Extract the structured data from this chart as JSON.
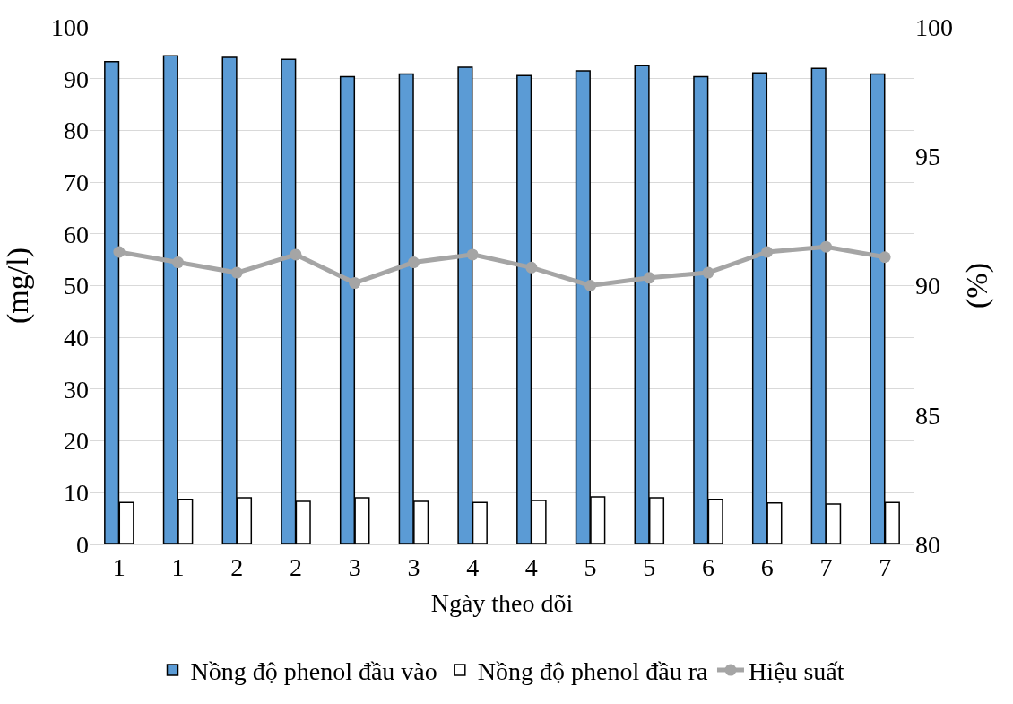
{
  "chart_data": {
    "type": "bar",
    "xlabel": "Ngày theo dõi",
    "ylabel": "(mg/l)",
    "y2label": "(%)",
    "categories": [
      "1",
      "1",
      "2",
      "2",
      "3",
      "3",
      "4",
      "4",
      "5",
      "5",
      "6",
      "6",
      "7",
      "7"
    ],
    "series": [
      {
        "name": "Nồng độ phenol đầu vào",
        "color": "#5b9bd5",
        "values": [
          93.3,
          94.4,
          94.1,
          93.7,
          90.4,
          90.9,
          92.2,
          90.6,
          91.5,
          92.5,
          90.4,
          91.1,
          92.0,
          90.9
        ]
      },
      {
        "name": "Nồng độ phenol đầu ra",
        "color": "#ffffff",
        "values": [
          8.1,
          8.7,
          9.0,
          8.3,
          9.0,
          8.3,
          8.1,
          8.5,
          9.2,
          9.0,
          8.7,
          8.0,
          7.8,
          8.1
        ]
      },
      {
        "name": "Hiệu suất",
        "type": "line",
        "axis": "y2",
        "color": "#a5a5a5",
        "marker": "circle",
        "values": [
          91.3,
          90.9,
          90.5,
          91.2,
          90.1,
          90.9,
          91.2,
          90.7,
          90.0,
          90.3,
          90.5,
          91.3,
          91.5,
          91.1
        ]
      }
    ],
    "ylim": [
      0,
      100
    ],
    "yticks": [
      0,
      10,
      20,
      30,
      40,
      50,
      60,
      70,
      80,
      90,
      100
    ],
    "y2lim": [
      80,
      100
    ],
    "y2ticks": [
      80,
      85,
      90,
      95,
      100
    ],
    "grid": "y",
    "legend": "bottom"
  }
}
